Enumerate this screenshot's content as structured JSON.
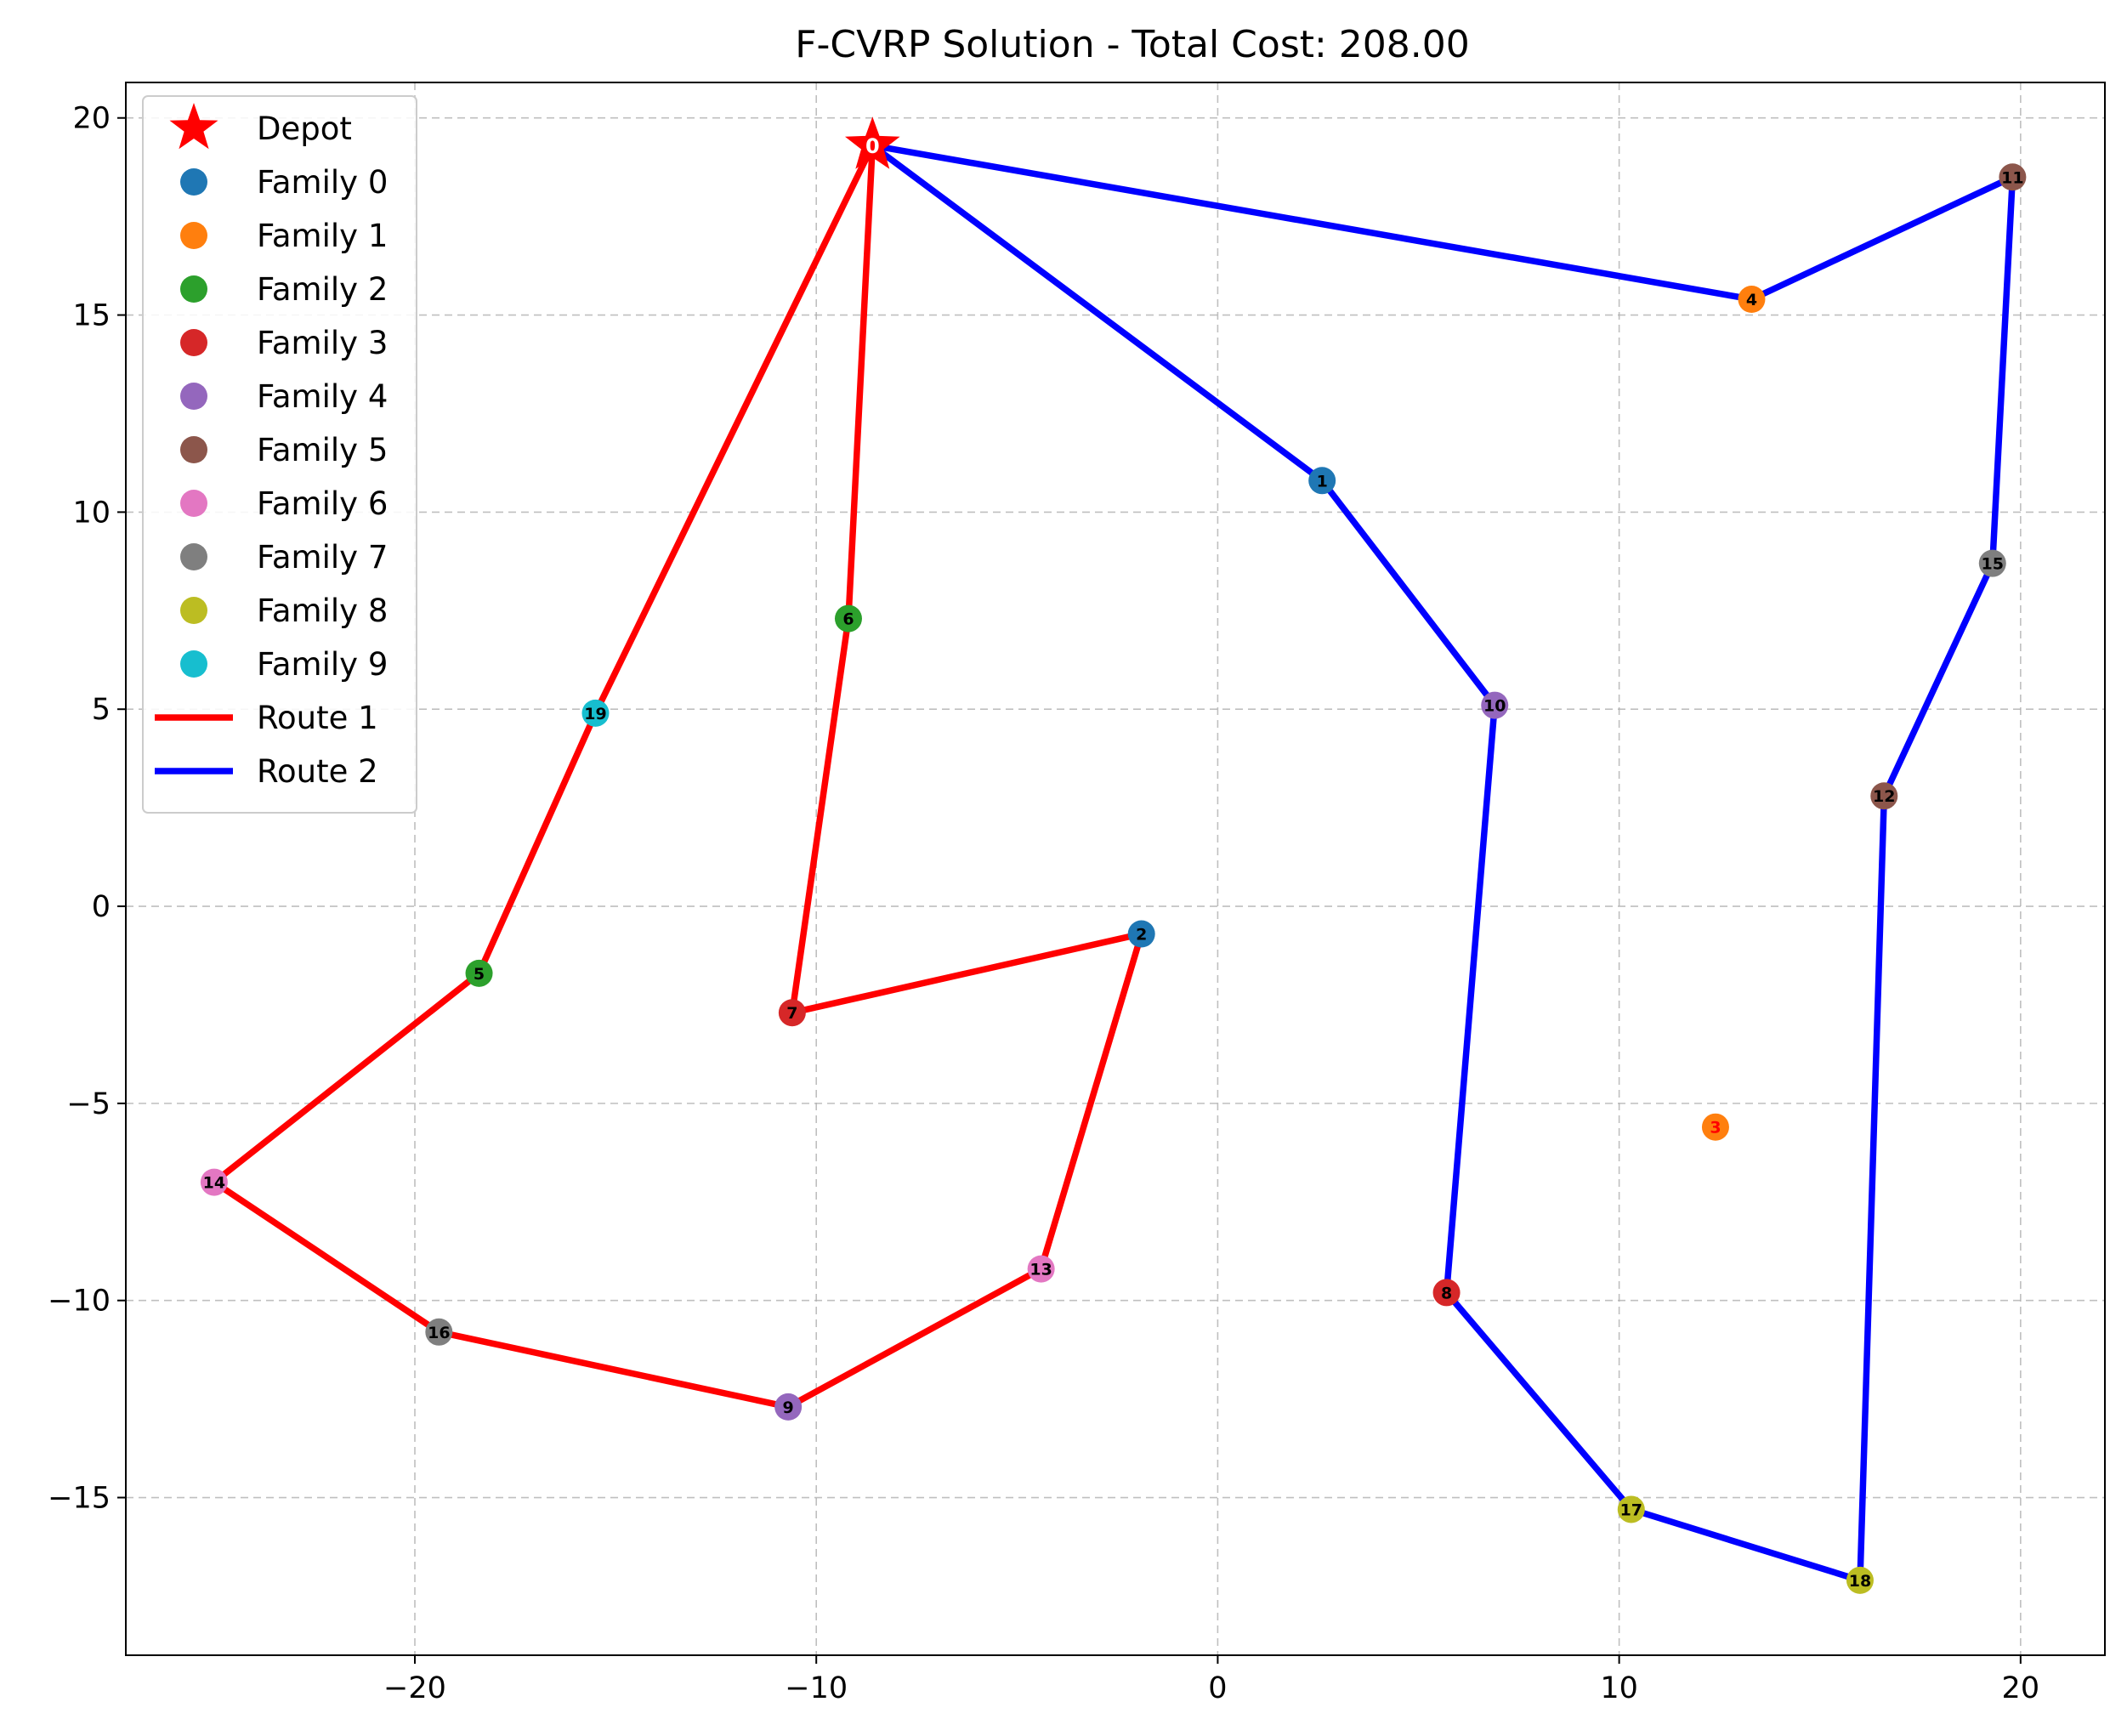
{
  "chart_data": {
    "type": "scatter",
    "title": "F-CVRP Solution - Total Cost: 208.00",
    "xlabel": "",
    "ylabel": "",
    "xlim": [
      -27.2,
      22.1
    ],
    "ylim": [
      -19.0,
      20.9
    ],
    "x_ticks": [
      -20,
      -10,
      0,
      10,
      20
    ],
    "x_tick_labels": [
      "−20",
      "−10",
      "0",
      "10",
      "20"
    ],
    "y_ticks": [
      -15,
      -10,
      -5,
      0,
      5,
      10,
      15,
      20
    ],
    "y_tick_labels": [
      "−15",
      "−10",
      "−5",
      "0",
      "5",
      "10",
      "15",
      "20"
    ],
    "grid": true,
    "legend_position": "upper-left",
    "family_colors": [
      "#1f77b4",
      "#ff7f0e",
      "#2ca02c",
      "#d62728",
      "#9467bd",
      "#8c564b",
      "#e377c2",
      "#7f7f7f",
      "#bcbd22",
      "#17becf"
    ],
    "legend": [
      {
        "label": "Depot",
        "kind": "star",
        "color": "#ff0000"
      },
      {
        "label": "Family 0",
        "kind": "dot",
        "color": "#1f77b4"
      },
      {
        "label": "Family 1",
        "kind": "dot",
        "color": "#ff7f0e"
      },
      {
        "label": "Family 2",
        "kind": "dot",
        "color": "#2ca02c"
      },
      {
        "label": "Family 3",
        "kind": "dot",
        "color": "#d62728"
      },
      {
        "label": "Family 4",
        "kind": "dot",
        "color": "#9467bd"
      },
      {
        "label": "Family 5",
        "kind": "dot",
        "color": "#8c564b"
      },
      {
        "label": "Family 6",
        "kind": "dot",
        "color": "#e377c2"
      },
      {
        "label": "Family 7",
        "kind": "dot",
        "color": "#7f7f7f"
      },
      {
        "label": "Family 8",
        "kind": "dot",
        "color": "#bcbd22"
      },
      {
        "label": "Family 9",
        "kind": "dot",
        "color": "#17becf"
      },
      {
        "label": "Route 1",
        "kind": "line",
        "color": "#ff0000"
      },
      {
        "label": "Route 2",
        "kind": "line",
        "color": "#0000ff"
      }
    ],
    "depot": {
      "id": "0",
      "x": -8.6,
      "y": 19.3
    },
    "nodes": [
      {
        "id": "1",
        "x": 2.6,
        "y": 10.8,
        "family": 0,
        "label_color": "#000000"
      },
      {
        "id": "2",
        "x": -1.9,
        "y": -0.7,
        "family": 0,
        "label_color": "#000000"
      },
      {
        "id": "3",
        "x": 12.4,
        "y": -5.6,
        "family": 1,
        "label_color": "#ff0000"
      },
      {
        "id": "4",
        "x": 13.3,
        "y": 15.4,
        "family": 1,
        "label_color": "#000000"
      },
      {
        "id": "5",
        "x": -18.4,
        "y": -1.7,
        "family": 2,
        "label_color": "#000000"
      },
      {
        "id": "6",
        "x": -9.2,
        "y": 7.3,
        "family": 2,
        "label_color": "#000000"
      },
      {
        "id": "7",
        "x": -10.6,
        "y": -2.7,
        "family": 3,
        "label_color": "#000000"
      },
      {
        "id": "8",
        "x": 5.7,
        "y": -9.8,
        "family": 3,
        "label_color": "#000000"
      },
      {
        "id": "9",
        "x": -10.7,
        "y": -12.7,
        "family": 4,
        "label_color": "#000000"
      },
      {
        "id": "10",
        "x": 6.9,
        "y": 5.1,
        "family": 4,
        "label_color": "#000000"
      },
      {
        "id": "11",
        "x": 19.8,
        "y": 18.5,
        "family": 5,
        "label_color": "#000000"
      },
      {
        "id": "12",
        "x": 16.6,
        "y": 2.8,
        "family": 5,
        "label_color": "#000000"
      },
      {
        "id": "13",
        "x": -4.4,
        "y": -9.2,
        "family": 6,
        "label_color": "#000000"
      },
      {
        "id": "14",
        "x": -25.0,
        "y": -7.0,
        "family": 6,
        "label_color": "#000000"
      },
      {
        "id": "15",
        "x": 19.3,
        "y": 8.7,
        "family": 7,
        "label_color": "#000000"
      },
      {
        "id": "16",
        "x": -19.4,
        "y": -10.8,
        "family": 7,
        "label_color": "#000000"
      },
      {
        "id": "17",
        "x": 10.3,
        "y": -15.3,
        "family": 8,
        "label_color": "#000000"
      },
      {
        "id": "18",
        "x": 16.0,
        "y": -17.1,
        "family": 8,
        "label_color": "#000000"
      },
      {
        "id": "19",
        "x": -15.5,
        "y": 4.9,
        "family": 9,
        "label_color": "#000000"
      }
    ],
    "routes": [
      {
        "name": "Route 1",
        "color": "#ff0000",
        "path": [
          "0",
          "6",
          "7",
          "2",
          "13",
          "9",
          "16",
          "14",
          "5",
          "19",
          "0"
        ]
      },
      {
        "name": "Route 2",
        "color": "#0000ff",
        "path": [
          "0",
          "1",
          "10",
          "8",
          "17",
          "18",
          "12",
          "15",
          "11",
          "4",
          "0"
        ]
      }
    ]
  }
}
